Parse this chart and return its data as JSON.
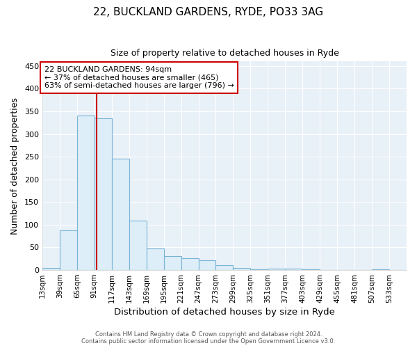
{
  "title_line1": "22, BUCKLAND GARDENS, RYDE, PO33 3AG",
  "title_line2": "Size of property relative to detached houses in Ryde",
  "xlabel": "Distribution of detached houses by size in Ryde",
  "ylabel": "Number of detached properties",
  "bar_color": "#ddeef8",
  "bar_edge_color": "#7ab4d4",
  "background_color": "#e8f0f8",
  "grid_color": "#ffffff",
  "annotation_box_color": "#cc0000",
  "annotation_line_color": "#cc0000",
  "property_line_x": 94,
  "annotation_text_line1": "22 BUCKLAND GARDENS: 94sqm",
  "annotation_text_line2": "← 37% of detached houses are smaller (465)",
  "annotation_text_line3": "63% of semi-detached houses are larger (796) →",
  "categories": [
    "13sqm",
    "39sqm",
    "65sqm",
    "91sqm",
    "117sqm",
    "143sqm",
    "169sqm",
    "195sqm",
    "221sqm",
    "247sqm",
    "273sqm",
    "299sqm",
    "325sqm",
    "351sqm",
    "377sqm",
    "403sqm",
    "429sqm",
    "455sqm",
    "481sqm",
    "507sqm",
    "533sqm"
  ],
  "bin_starts": [
    13,
    39,
    65,
    91,
    117,
    143,
    169,
    195,
    221,
    247,
    273,
    299,
    325,
    351,
    377,
    403,
    429,
    455,
    481,
    507,
    533
  ],
  "bin_width": 26,
  "values": [
    5,
    88,
    341,
    335,
    246,
    109,
    48,
    31,
    26,
    22,
    11,
    5,
    2,
    3,
    3,
    1,
    0,
    0,
    0,
    1,
    0
  ],
  "ylim": [
    0,
    460
  ],
  "yticks": [
    0,
    50,
    100,
    150,
    200,
    250,
    300,
    350,
    400,
    450
  ],
  "footer_line1": "Contains HM Land Registry data © Crown copyright and database right 2024.",
  "footer_line2": "Contains public sector information licensed under the Open Government Licence v3.0."
}
